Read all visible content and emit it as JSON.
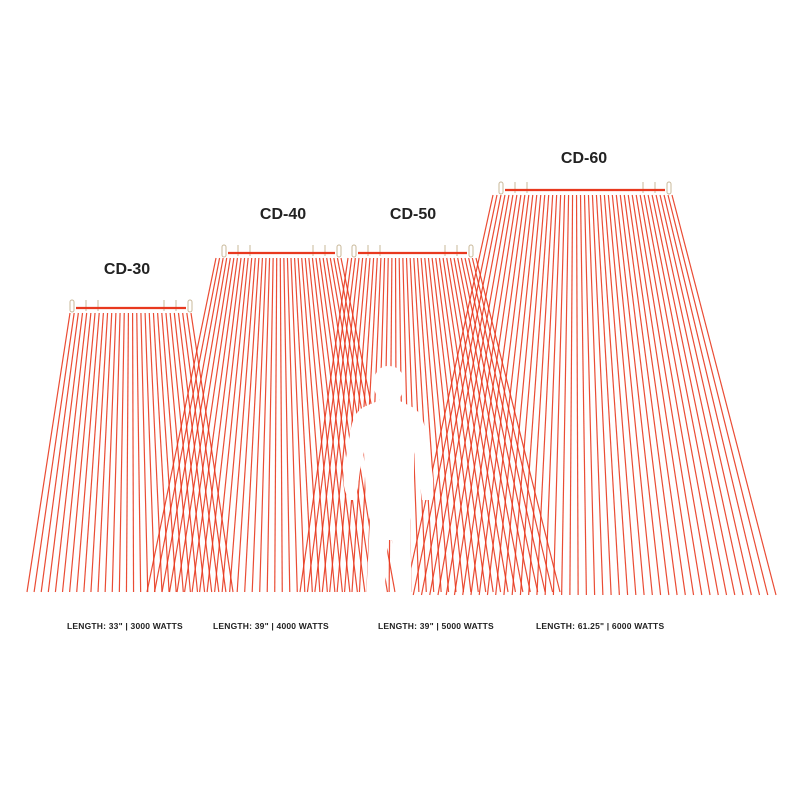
{
  "colors": {
    "element_line": "#e8391f",
    "frame": "#c9b99a",
    "text": "#222222"
  },
  "icons": {
    "person": "person-silhouette-icon"
  },
  "units": [
    {
      "model": "CD-30",
      "spec": "LENGTH: 33\" | 3000 WATTS"
    },
    {
      "model": "CD-40",
      "spec": "LENGTH: 39\" | 4000 WATTS"
    },
    {
      "model": "CD-50",
      "spec": "LENGTH: 39\" | 5000 WATTS"
    },
    {
      "model": "CD-60",
      "spec": "LENGTH: 61.25\" | 6000 WATTS"
    }
  ]
}
